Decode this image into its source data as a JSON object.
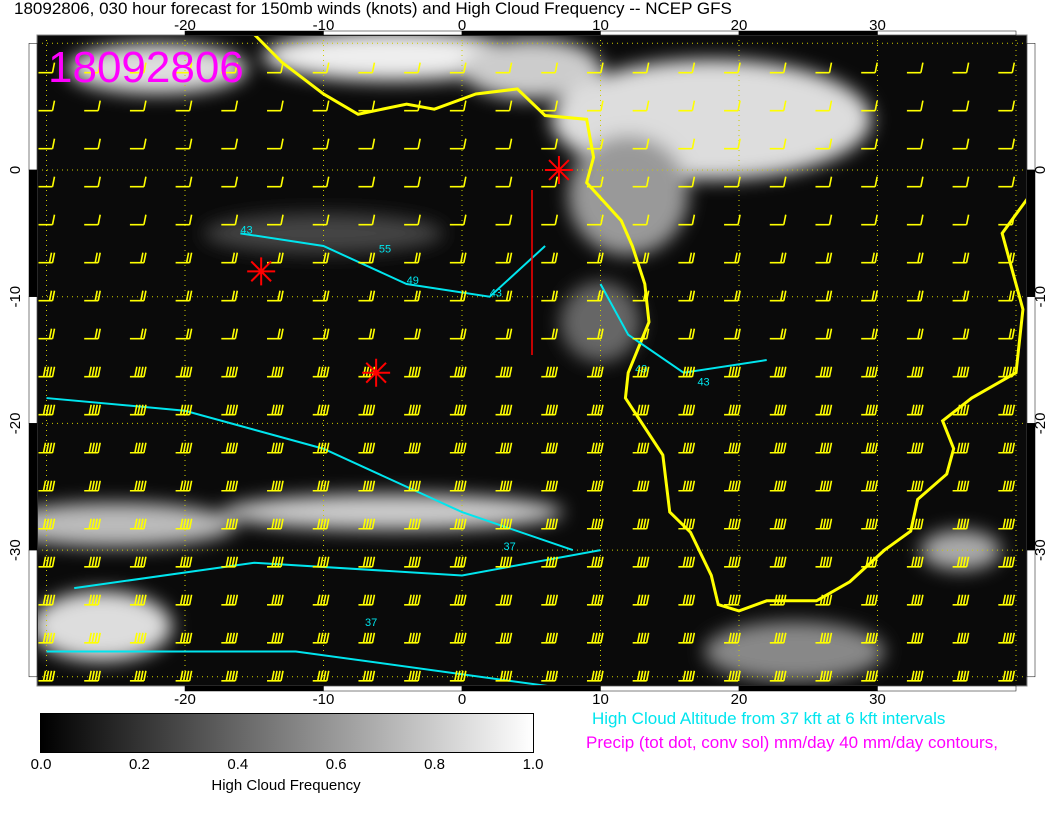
{
  "title": "18092806, 030 hour forecast for 150mb winds (knots) and High Cloud Frequency -- NCEP GFS",
  "date_stamp": "18092806",
  "axes": {
    "lon_ticks": [
      "-20",
      "-10",
      "0",
      "10",
      "20",
      "30"
    ],
    "lon_values": [
      -20,
      -10,
      0,
      10,
      20,
      30
    ],
    "lat_ticks": [
      "0",
      "-10",
      "-20",
      "-30"
    ],
    "lat_values": [
      0,
      -10,
      -20,
      -30
    ],
    "lon_range": [
      -31,
      41
    ],
    "lat_range": [
      -41,
      11
    ]
  },
  "colorbar": {
    "ticks": [
      "0.0",
      "0.2",
      "0.4",
      "0.6",
      "0.8",
      "1.0"
    ],
    "label": "High Cloud Frequency",
    "range": [
      0,
      1
    ]
  },
  "legend": {
    "cloud_altitude": "High Cloud Altitude from 37 kft at 6 kft intervals",
    "precip": "Precip (tot dot, conv sol) mm/day 40 mm/day contours,"
  },
  "contour_labels": [
    "43",
    "49",
    "55",
    "43",
    "49",
    "37",
    "37",
    "43"
  ],
  "markers": [
    {
      "lon": 7,
      "lat": 0
    },
    {
      "lon": -14.5,
      "lat": -8
    },
    {
      "lon": -6.2,
      "lat": -16
    }
  ],
  "colors": {
    "winds": "#ffff00",
    "cloud_altitude": "#00e5ee",
    "precip": "#ff00ff",
    "marker": "#ff0000",
    "coast": "#ffff00"
  }
}
